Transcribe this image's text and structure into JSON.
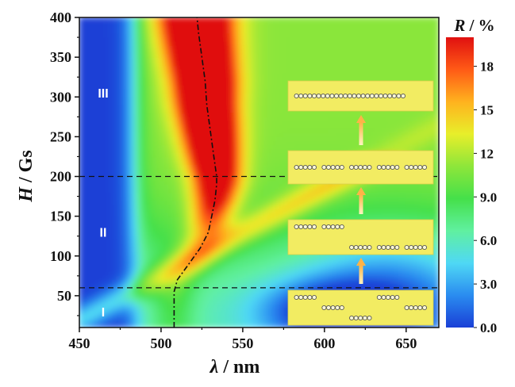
{
  "chart_data": {
    "type": "heatmap",
    "title": "",
    "xlabel": {
      "symbol": "λ",
      "unit": "nm"
    },
    "ylabel": {
      "symbol": "H",
      "unit": "Gs"
    },
    "colorbar_label": {
      "symbol": "R",
      "unit": "%"
    },
    "xlim": [
      450,
      670
    ],
    "ylim": [
      10,
      400
    ],
    "x_ticks": [
      "450",
      "500",
      "550",
      "600",
      "650"
    ],
    "x_tick_values": [
      450,
      500,
      550,
      600,
      650
    ],
    "y_ticks": [
      "50",
      "100",
      "150",
      "200",
      "250",
      "300",
      "350",
      "400"
    ],
    "y_tick_values": [
      50,
      100,
      150,
      200,
      250,
      300,
      350,
      400
    ],
    "colorbar_ticks": [
      "0.0",
      "3.0",
      "6.0",
      "9.0",
      "12",
      "15",
      "18"
    ],
    "colorbar_tick_values": [
      0,
      3,
      6,
      9,
      12,
      15,
      18
    ],
    "colorbar_range": [
      0,
      20
    ],
    "colormap": [
      "#1a3fd6",
      "#2a8cf0",
      "#4fd8f5",
      "#60f0a0",
      "#45e04a",
      "#8ee63a",
      "#e8ee2a",
      "#ffb21e",
      "#ff5a16",
      "#e01010"
    ],
    "region_boundaries_H": [
      60,
      200
    ],
    "regions": [
      {
        "label": "I",
        "H": 30
      },
      {
        "label": "II",
        "H": 130
      },
      {
        "label": "III",
        "H": 305
      }
    ],
    "peak_wavelength_curve": {
      "style": "dash-dot",
      "points": [
        {
          "H": 10,
          "lambda": 508
        },
        {
          "H": 30,
          "lambda": 508
        },
        {
          "H": 55,
          "lambda": 508
        },
        {
          "H": 70,
          "lambda": 510
        },
        {
          "H": 90,
          "lambda": 517
        },
        {
          "H": 110,
          "lambda": 524
        },
        {
          "H": 130,
          "lambda": 529
        },
        {
          "H": 150,
          "lambda": 531
        },
        {
          "H": 170,
          "lambda": 533
        },
        {
          "H": 190,
          "lambda": 534
        },
        {
          "H": 200,
          "lambda": 534
        },
        {
          "H": 230,
          "lambda": 532
        },
        {
          "H": 260,
          "lambda": 530
        },
        {
          "H": 290,
          "lambda": 528
        },
        {
          "H": 320,
          "lambda": 527
        },
        {
          "H": 350,
          "lambda": 525
        },
        {
          "H": 380,
          "lambda": 523
        },
        {
          "H": 400,
          "lambda": 522
        }
      ]
    },
    "inset_panels": [
      {
        "name": "chain-state-1",
        "groups": [
          [
            5,
            0
          ],
          [
            5,
            1
          ],
          [
            5,
            2
          ],
          [
            5,
            0
          ],
          [
            5,
            1
          ]
        ]
      },
      {
        "name": "chain-state-2",
        "groups": [
          [
            5,
            0
          ],
          [
            5,
            0
          ],
          [
            5,
            1
          ],
          [
            5,
            1
          ],
          [
            5,
            1
          ]
        ]
      },
      {
        "name": "chain-state-3",
        "groups": [
          [
            5,
            0
          ],
          [
            5,
            0
          ],
          [
            5,
            0
          ],
          [
            5,
            0
          ],
          [
            5,
            0
          ]
        ]
      },
      {
        "name": "chain-state-4",
        "groups": [
          [
            25,
            0
          ]
        ]
      }
    ],
    "grid": false,
    "legend": "colorbar-right"
  }
}
